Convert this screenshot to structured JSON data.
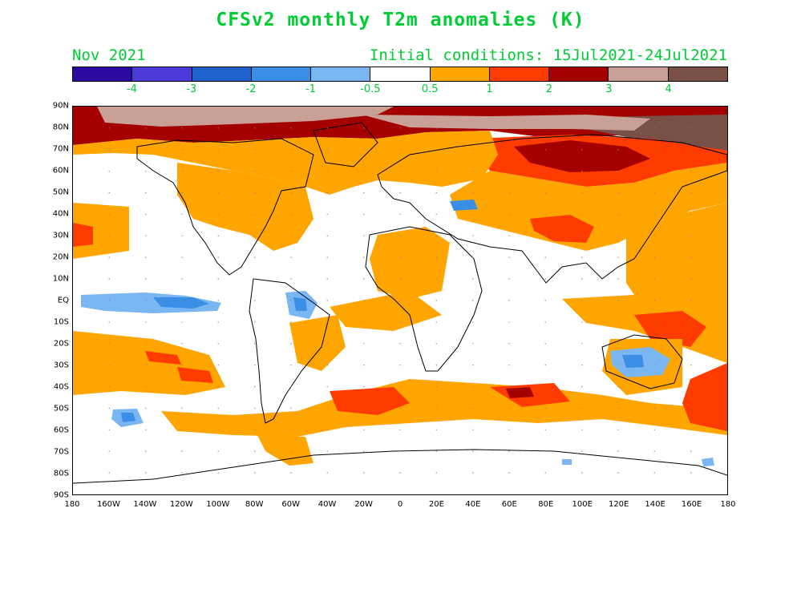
{
  "title": "CFSv2 monthly T2m anomalies (K)",
  "month_label": "Nov 2021",
  "init_conditions": "Initial conditions: 15Jul2021-24Jul2021",
  "colorbar": {
    "colors": [
      "#2a0aa0",
      "#4a3ad8",
      "#1f62cc",
      "#3a8ee6",
      "#7ab6f2",
      "#ffffff",
      "#ffa500",
      "#ff3c00",
      "#a50000",
      "#c8a096",
      "#785046"
    ],
    "labels": [
      "-4",
      "-3",
      "-2",
      "-1",
      "-0.5",
      "0.5",
      "1",
      "2",
      "3",
      "4"
    ]
  },
  "lat_labels": [
    "90N",
    "80N",
    "70N",
    "60N",
    "50N",
    "40N",
    "30N",
    "20N",
    "10N",
    "EQ",
    "10S",
    "20S",
    "30S",
    "40S",
    "50S",
    "60S",
    "70S",
    "80S",
    "90S"
  ],
  "lon_labels": [
    "180",
    "160W",
    "140W",
    "120W",
    "100W",
    "80W",
    "60W",
    "40W",
    "20W",
    "0",
    "20E",
    "40E",
    "60E",
    "80E",
    "100E",
    "120E",
    "140E",
    "160E",
    "180"
  ]
}
